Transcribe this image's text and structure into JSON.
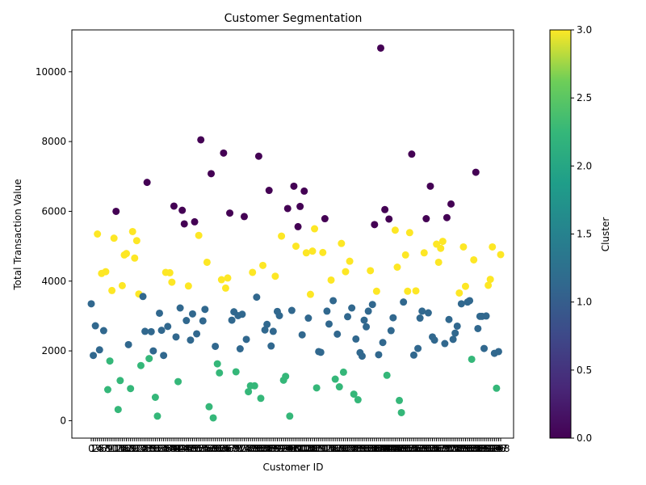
{
  "chart_data": {
    "type": "scatter",
    "title": "Customer Segmentation",
    "xlabel": "Customer ID",
    "ylabel": "Total Transaction Value",
    "ylim": [
      -500,
      11200
    ],
    "yticks": [
      0,
      2000,
      4000,
      6000,
      8000,
      10000
    ],
    "grid": false,
    "colorbar": {
      "label": "Cluster",
      "range": [
        0,
        3
      ],
      "ticks": [
        "0.0",
        "0.5",
        "1.0",
        "1.5",
        "2.0",
        "2.5",
        "3.0"
      ],
      "colormap": "viridis"
    },
    "cluster_colors": {
      "0": "#440154",
      "1": "#31688e",
      "2": "#35b779",
      "3": "#fde725"
    },
    "points": [
      {
        "cluster": 1,
        "y": 3350
      },
      {
        "cluster": 1,
        "y": 1870
      },
      {
        "cluster": 1,
        "y": 2720
      },
      {
        "cluster": 3,
        "y": 5350
      },
      {
        "cluster": 1,
        "y": 2030
      },
      {
        "cluster": 3,
        "y": 4220
      },
      {
        "cluster": 1,
        "y": 2580
      },
      {
        "cluster": 3,
        "y": 4270
      },
      {
        "cluster": 2,
        "y": 890
      },
      {
        "cluster": 2,
        "y": 1710
      },
      {
        "cluster": 3,
        "y": 3730
      },
      {
        "cluster": 3,
        "y": 5230
      },
      {
        "cluster": 0,
        "y": 6000
      },
      {
        "cluster": 2,
        "y": 320
      },
      {
        "cluster": 2,
        "y": 1150
      },
      {
        "cluster": 3,
        "y": 3870
      },
      {
        "cluster": 3,
        "y": 4750
      },
      {
        "cluster": 3,
        "y": 4790
      },
      {
        "cluster": 1,
        "y": 2180
      },
      {
        "cluster": 2,
        "y": 920
      },
      {
        "cluster": 3,
        "y": 5420
      },
      {
        "cluster": 3,
        "y": 4660
      },
      {
        "cluster": 3,
        "y": 5160
      },
      {
        "cluster": 3,
        "y": 3630
      },
      {
        "cluster": 2,
        "y": 1580
      },
      {
        "cluster": 1,
        "y": 3560
      },
      {
        "cluster": 1,
        "y": 2560
      },
      {
        "cluster": 0,
        "y": 6830
      },
      {
        "cluster": 2,
        "y": 1780
      },
      {
        "cluster": 1,
        "y": 2550
      },
      {
        "cluster": 1,
        "y": 2000
      },
      {
        "cluster": 2,
        "y": 670
      },
      {
        "cluster": 2,
        "y": 130
      },
      {
        "cluster": 1,
        "y": 3080
      },
      {
        "cluster": 1,
        "y": 2590
      },
      {
        "cluster": 1,
        "y": 1870
      },
      {
        "cluster": 3,
        "y": 4250
      },
      {
        "cluster": 1,
        "y": 2700
      },
      {
        "cluster": 3,
        "y": 4240
      },
      {
        "cluster": 3,
        "y": 3970
      },
      {
        "cluster": 0,
        "y": 6150
      },
      {
        "cluster": 1,
        "y": 2400
      },
      {
        "cluster": 2,
        "y": 1120
      },
      {
        "cluster": 1,
        "y": 3230
      },
      {
        "cluster": 0,
        "y": 6030
      },
      {
        "cluster": 0,
        "y": 5640
      },
      {
        "cluster": 1,
        "y": 2870
      },
      {
        "cluster": 3,
        "y": 3860
      },
      {
        "cluster": 1,
        "y": 2310
      },
      {
        "cluster": 1,
        "y": 3060
      },
      {
        "cluster": 0,
        "y": 5700
      },
      {
        "cluster": 1,
        "y": 2490
      },
      {
        "cluster": 3,
        "y": 5310
      },
      {
        "cluster": 0,
        "y": 8050
      },
      {
        "cluster": 1,
        "y": 2860
      },
      {
        "cluster": 1,
        "y": 3190
      },
      {
        "cluster": 3,
        "y": 4540
      },
      {
        "cluster": 2,
        "y": 400
      },
      {
        "cluster": 0,
        "y": 7080
      },
      {
        "cluster": 2,
        "y": 80
      },
      {
        "cluster": 1,
        "y": 2130
      },
      {
        "cluster": 2,
        "y": 1630
      },
      {
        "cluster": 2,
        "y": 1370
      },
      {
        "cluster": 3,
        "y": 4040
      },
      {
        "cluster": 0,
        "y": 7670
      },
      {
        "cluster": 3,
        "y": 3800
      },
      {
        "cluster": 3,
        "y": 4090
      },
      {
        "cluster": 0,
        "y": 5950
      },
      {
        "cluster": 1,
        "y": 2880
      },
      {
        "cluster": 1,
        "y": 3120
      },
      {
        "cluster": 2,
        "y": 1400
      },
      {
        "cluster": 1,
        "y": 3010
      },
      {
        "cluster": 1,
        "y": 2060
      },
      {
        "cluster": 1,
        "y": 3050
      },
      {
        "cluster": 0,
        "y": 5850
      },
      {
        "cluster": 1,
        "y": 2330
      },
      {
        "cluster": 2,
        "y": 830
      },
      {
        "cluster": 2,
        "y": 1000
      },
      {
        "cluster": 3,
        "y": 4250
      },
      {
        "cluster": 2,
        "y": 1000
      },
      {
        "cluster": 1,
        "y": 3540
      },
      {
        "cluster": 0,
        "y": 7580
      },
      {
        "cluster": 2,
        "y": 640
      },
      {
        "cluster": 3,
        "y": 4450
      },
      {
        "cluster": 1,
        "y": 2600
      },
      {
        "cluster": 1,
        "y": 2760
      },
      {
        "cluster": 0,
        "y": 6600
      },
      {
        "cluster": 1,
        "y": 2140
      },
      {
        "cluster": 1,
        "y": 2560
      },
      {
        "cluster": 3,
        "y": 4140
      },
      {
        "cluster": 1,
        "y": 3130
      },
      {
        "cluster": 1,
        "y": 3010
      },
      {
        "cluster": 3,
        "y": 5290
      },
      {
        "cluster": 2,
        "y": 1160
      },
      {
        "cluster": 2,
        "y": 1270
      },
      {
        "cluster": 0,
        "y": 6080
      },
      {
        "cluster": 2,
        "y": 130
      },
      {
        "cluster": 1,
        "y": 3160
      },
      {
        "cluster": 0,
        "y": 6720
      },
      {
        "cluster": 3,
        "y": 5000
      },
      {
        "cluster": 0,
        "y": 5560
      },
      {
        "cluster": 0,
        "y": 6140
      },
      {
        "cluster": 1,
        "y": 2460
      },
      {
        "cluster": 0,
        "y": 6580
      },
      {
        "cluster": 3,
        "y": 4810
      },
      {
        "cluster": 1,
        "y": 2940
      },
      {
        "cluster": 3,
        "y": 3620
      },
      {
        "cluster": 3,
        "y": 4860
      },
      {
        "cluster": 3,
        "y": 5500
      },
      {
        "cluster": 2,
        "y": 940
      },
      {
        "cluster": 1,
        "y": 1980
      },
      {
        "cluster": 1,
        "y": 1960
      },
      {
        "cluster": 3,
        "y": 4820
      },
      {
        "cluster": 0,
        "y": 5790
      },
      {
        "cluster": 1,
        "y": 3140
      },
      {
        "cluster": 1,
        "y": 2770
      },
      {
        "cluster": 3,
        "y": 4030
      },
      {
        "cluster": 1,
        "y": 3440
      },
      {
        "cluster": 2,
        "y": 1190
      },
      {
        "cluster": 1,
        "y": 2480
      },
      {
        "cluster": 2,
        "y": 970
      },
      {
        "cluster": 3,
        "y": 5080
      },
      {
        "cluster": 2,
        "y": 1390
      },
      {
        "cluster": 3,
        "y": 4270
      },
      {
        "cluster": 1,
        "y": 2980
      },
      {
        "cluster": 3,
        "y": 4570
      },
      {
        "cluster": 1,
        "y": 3230
      },
      {
        "cluster": 2,
        "y": 760
      },
      {
        "cluster": 1,
        "y": 2340
      },
      {
        "cluster": 2,
        "y": 600
      },
      {
        "cluster": 1,
        "y": 1950
      },
      {
        "cluster": 1,
        "y": 1850
      },
      {
        "cluster": 1,
        "y": 2880
      },
      {
        "cluster": 1,
        "y": 2690
      },
      {
        "cluster": 1,
        "y": 3140
      },
      {
        "cluster": 3,
        "y": 4300
      },
      {
        "cluster": 1,
        "y": 3330
      },
      {
        "cluster": 0,
        "y": 5620
      },
      {
        "cluster": 3,
        "y": 3710
      },
      {
        "cluster": 1,
        "y": 1890
      },
      {
        "cluster": 0,
        "y": 10680
      },
      {
        "cluster": 1,
        "y": 2240
      },
      {
        "cluster": 0,
        "y": 6050
      },
      {
        "cluster": 2,
        "y": 1300
      },
      {
        "cluster": 0,
        "y": 5780
      },
      {
        "cluster": 1,
        "y": 2580
      },
      {
        "cluster": 1,
        "y": 2950
      },
      {
        "cluster": 3,
        "y": 5460
      },
      {
        "cluster": 3,
        "y": 4400
      },
      {
        "cluster": 2,
        "y": 580
      },
      {
        "cluster": 2,
        "y": 230
      },
      {
        "cluster": 1,
        "y": 3400
      },
      {
        "cluster": 3,
        "y": 4750
      },
      {
        "cluster": 3,
        "y": 3710
      },
      {
        "cluster": 3,
        "y": 5390
      },
      {
        "cluster": 0,
        "y": 7640
      },
      {
        "cluster": 1,
        "y": 1880
      },
      {
        "cluster": 3,
        "y": 3720
      },
      {
        "cluster": 1,
        "y": 2070
      },
      {
        "cluster": 1,
        "y": 2940
      },
      {
        "cluster": 1,
        "y": 3140
      },
      {
        "cluster": 3,
        "y": 4810
      },
      {
        "cluster": 0,
        "y": 5790
      },
      {
        "cluster": 1,
        "y": 3090
      },
      {
        "cluster": 0,
        "y": 6720
      },
      {
        "cluster": 1,
        "y": 2400
      },
      {
        "cluster": 1,
        "y": 2310
      },
      {
        "cluster": 3,
        "y": 5060
      },
      {
        "cluster": 3,
        "y": 4540
      },
      {
        "cluster": 3,
        "y": 4940
      },
      {
        "cluster": 3,
        "y": 5140
      },
      {
        "cluster": 1,
        "y": 2210
      },
      {
        "cluster": 0,
        "y": 5820
      },
      {
        "cluster": 1,
        "y": 2900
      },
      {
        "cluster": 0,
        "y": 6210
      },
      {
        "cluster": 1,
        "y": 2330
      },
      {
        "cluster": 1,
        "y": 2510
      },
      {
        "cluster": 1,
        "y": 2710
      },
      {
        "cluster": 3,
        "y": 3660
      },
      {
        "cluster": 1,
        "y": 3350
      },
      {
        "cluster": 3,
        "y": 4980
      },
      {
        "cluster": 3,
        "y": 3850
      },
      {
        "cluster": 1,
        "y": 3400
      },
      {
        "cluster": 1,
        "y": 3440
      },
      {
        "cluster": 2,
        "y": 1760
      },
      {
        "cluster": 3,
        "y": 4610
      },
      {
        "cluster": 0,
        "y": 7120
      },
      {
        "cluster": 1,
        "y": 2640
      },
      {
        "cluster": 1,
        "y": 2990
      },
      {
        "cluster": 1,
        "y": 2990
      },
      {
        "cluster": 1,
        "y": 2070
      },
      {
        "cluster": 1,
        "y": 3000
      },
      {
        "cluster": 3,
        "y": 3880
      },
      {
        "cluster": 3,
        "y": 4050
      },
      {
        "cluster": 3,
        "y": 4980
      },
      {
        "cluster": 1,
        "y": 1930
      },
      {
        "cluster": 2,
        "y": 930
      },
      {
        "cluster": 1,
        "y": 1980
      },
      {
        "cluster": 3,
        "y": 4760
      }
    ]
  }
}
